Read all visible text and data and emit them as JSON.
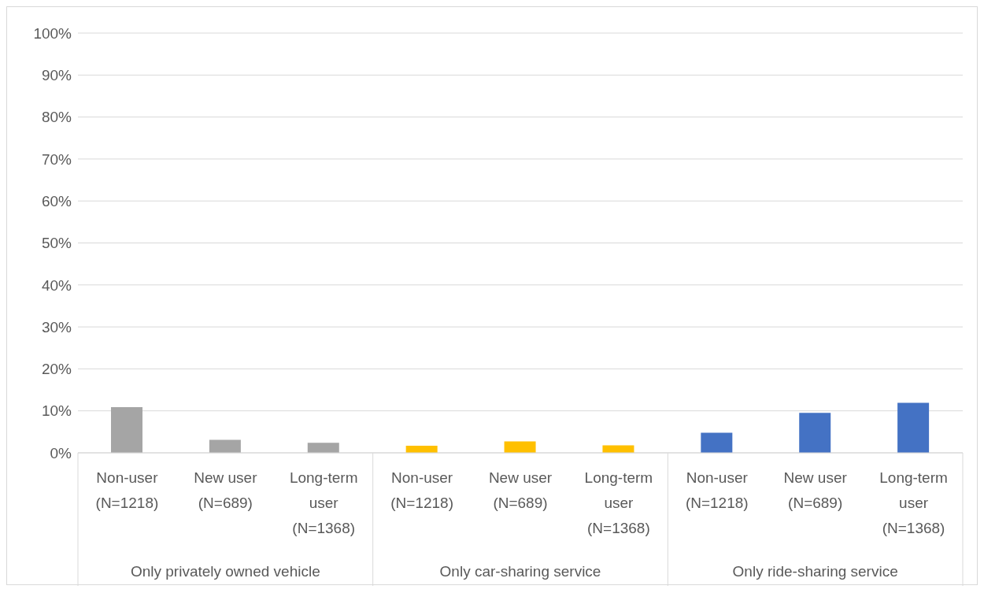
{
  "chart_data": {
    "type": "bar",
    "categories": [
      "Non-user (N=1218)",
      "New user (N=689)",
      "Long-term user (N=1368)",
      "Non-user (N=1218)",
      "New user (N=689)",
      "Long-term user (N=1368)",
      "Non-user (N=1218)",
      "New user (N=689)",
      "Long-term user (N=1368)"
    ],
    "values": [
      10.9,
      3.1,
      2.4,
      1.7,
      2.7,
      1.8,
      4.8,
      9.5,
      11.9
    ],
    "colors": [
      "#a5a5a5",
      "#a5a5a5",
      "#a5a5a5",
      "#ffc000",
      "#ffc000",
      "#ffc000",
      "#4472c4",
      "#4472c4",
      "#4472c4"
    ],
    "ylim": [
      0,
      100
    ],
    "yticks": [
      {
        "value": 0,
        "label": "0%"
      },
      {
        "value": 10,
        "label": "10%"
      },
      {
        "value": 20,
        "label": "20%"
      },
      {
        "value": 30,
        "label": "30%"
      },
      {
        "value": 40,
        "label": "40%"
      },
      {
        "value": 50,
        "label": "50%"
      },
      {
        "value": 60,
        "label": "60%"
      },
      {
        "value": 70,
        "label": "70%"
      },
      {
        "value": 80,
        "label": "80%"
      },
      {
        "value": 90,
        "label": "90%"
      },
      {
        "value": 100,
        "label": "100%"
      }
    ],
    "grid": "y",
    "annotations": [
      "Only privately owned vehicle",
      "Only car-sharing service",
      "Only ride-sharing service"
    ]
  }
}
